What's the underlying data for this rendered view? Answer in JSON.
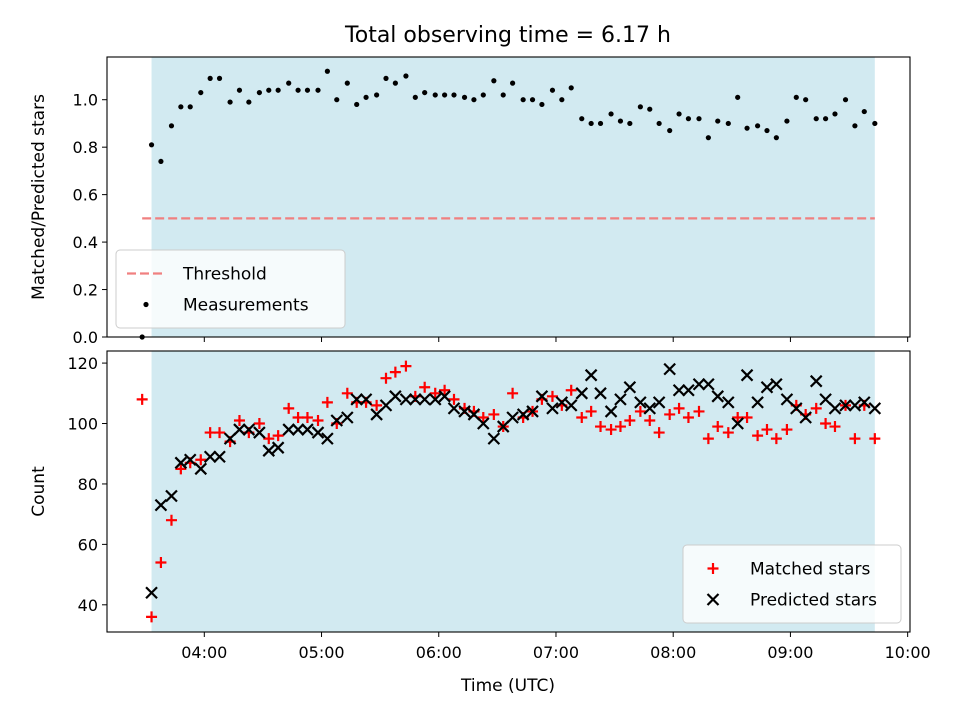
{
  "figure": {
    "title": "Total observing time = 6.17 h",
    "xlabel": "Time (UTC)",
    "span_color": "#add8e6",
    "span_hours": [
      3.55,
      9.72
    ],
    "x_ticks": [
      {
        "h": 4,
        "label": "04:00"
      },
      {
        "h": 5,
        "label": "05:00"
      },
      {
        "h": 6,
        "label": "06:00"
      },
      {
        "h": 7,
        "label": "07:00"
      },
      {
        "h": 8,
        "label": "08:00"
      },
      {
        "h": 9,
        "label": "09:00"
      },
      {
        "h": 10,
        "label": "10:00"
      }
    ],
    "xlim": [
      3.17,
      10.02
    ]
  },
  "chart_data": [
    {
      "type": "scatter",
      "ylabel": "Matched/Predicted stars",
      "ylim": [
        0,
        1.18
      ],
      "y_ticks": [
        {
          "v": 0.0,
          "label": "0.0"
        },
        {
          "v": 0.2,
          "label": "0.2"
        },
        {
          "v": 0.4,
          "label": "0.4"
        },
        {
          "v": 0.6,
          "label": "0.6"
        },
        {
          "v": 0.8,
          "label": "0.8"
        },
        {
          "v": 1.0,
          "label": "1.0"
        }
      ],
      "legend": {
        "placement": "lower-left",
        "entries": [
          {
            "label": "Threshold",
            "marker": "dashed-line",
            "color": "#f08080"
          },
          {
            "label": "Measurements",
            "marker": "dot",
            "color": "#000000"
          }
        ]
      },
      "threshold": {
        "value": 0.5,
        "x_range": [
          3.47,
          9.72
        ],
        "color": "#f08080"
      },
      "series": [
        {
          "name": "Measurements",
          "color": "#000000",
          "x": [
            3.47,
            3.55,
            3.63,
            3.72,
            3.8,
            3.88,
            3.97,
            4.05,
            4.13,
            4.22,
            4.3,
            4.38,
            4.47,
            4.55,
            4.63,
            4.72,
            4.8,
            4.88,
            4.97,
            5.05,
            5.13,
            5.22,
            5.3,
            5.38,
            5.47,
            5.55,
            5.63,
            5.72,
            5.8,
            5.88,
            5.97,
            6.05,
            6.13,
            6.22,
            6.3,
            6.38,
            6.47,
            6.55,
            6.63,
            6.72,
            6.8,
            6.88,
            6.97,
            7.05,
            7.13,
            7.22,
            7.3,
            7.38,
            7.47,
            7.55,
            7.63,
            7.72,
            7.8,
            7.88,
            7.97,
            8.05,
            8.13,
            8.22,
            8.3,
            8.38,
            8.47,
            8.55,
            8.63,
            8.72,
            8.8,
            8.88,
            8.97,
            9.05,
            9.13,
            9.22,
            9.3,
            9.38,
            9.47,
            9.55,
            9.63,
            9.72
          ],
          "y": [
            0.0,
            0.81,
            0.74,
            0.89,
            0.97,
            0.97,
            1.03,
            1.09,
            1.09,
            0.99,
            1.04,
            0.99,
            1.03,
            1.04,
            1.04,
            1.07,
            1.04,
            1.04,
            1.04,
            1.12,
            1.0,
            1.07,
            0.98,
            1.01,
            1.02,
            1.09,
            1.07,
            1.1,
            1.01,
            1.03,
            1.02,
            1.02,
            1.02,
            1.01,
            1.0,
            1.02,
            1.08,
            1.02,
            1.07,
            1.0,
            1.0,
            0.98,
            1.04,
            1.0,
            1.05,
            0.92,
            0.9,
            0.9,
            0.94,
            0.91,
            0.9,
            0.97,
            0.96,
            0.9,
            0.87,
            0.94,
            0.92,
            0.92,
            0.84,
            0.91,
            0.9,
            1.01,
            0.88,
            0.89,
            0.87,
            0.84,
            0.91,
            1.01,
            1.0,
            0.92,
            0.92,
            0.94,
            1.0,
            0.89,
            0.95,
            0.9
          ]
        }
      ]
    },
    {
      "type": "scatter",
      "ylabel": "Count",
      "ylim": [
        31,
        124
      ],
      "y_ticks": [
        {
          "v": 40,
          "label": "40"
        },
        {
          "v": 60,
          "label": "60"
        },
        {
          "v": 80,
          "label": "80"
        },
        {
          "v": 100,
          "label": "100"
        },
        {
          "v": 120,
          "label": "120"
        }
      ],
      "legend": {
        "placement": "lower-right",
        "entries": [
          {
            "label": "Matched stars",
            "marker": "plus",
            "color": "#ff0000"
          },
          {
            "label": "Predicted stars",
            "marker": "x",
            "color": "#000000"
          }
        ]
      },
      "series": [
        {
          "name": "Matched stars",
          "marker": "plus",
          "color": "#ff0000",
          "x": [
            3.47,
            3.55,
            3.63,
            3.72,
            3.8,
            3.88,
            3.97,
            4.05,
            4.13,
            4.22,
            4.3,
            4.38,
            4.47,
            4.55,
            4.63,
            4.72,
            4.8,
            4.88,
            4.97,
            5.05,
            5.13,
            5.22,
            5.3,
            5.38,
            5.47,
            5.55,
            5.63,
            5.72,
            5.8,
            5.88,
            5.97,
            6.05,
            6.13,
            6.22,
            6.3,
            6.38,
            6.47,
            6.55,
            6.63,
            6.72,
            6.8,
            6.88,
            6.97,
            7.05,
            7.13,
            7.22,
            7.3,
            7.38,
            7.47,
            7.55,
            7.63,
            7.72,
            7.8,
            7.88,
            7.97,
            8.05,
            8.13,
            8.22,
            8.3,
            8.38,
            8.47,
            8.55,
            8.63,
            8.72,
            8.8,
            8.88,
            8.97,
            9.05,
            9.13,
            9.22,
            9.3,
            9.38,
            9.47,
            9.55,
            9.63,
            9.72
          ],
          "y": [
            108,
            36,
            54,
            68,
            85,
            87,
            88,
            97,
            97,
            94,
            101,
            97,
            100,
            95,
            96,
            105,
            102,
            102,
            101,
            107,
            100,
            110,
            107,
            107,
            106,
            115,
            117,
            119,
            109,
            112,
            110,
            111,
            108,
            105,
            104,
            102,
            103,
            99,
            110,
            102,
            104,
            108,
            109,
            106,
            111,
            102,
            104,
            99,
            98,
            99,
            101,
            104,
            101,
            97,
            103,
            105,
            102,
            104,
            95,
            99,
            97,
            102,
            102,
            96,
            98,
            95,
            98,
            106,
            103,
            105,
            100,
            99,
            106,
            95,
            106,
            95
          ]
        },
        {
          "name": "Predicted stars",
          "marker": "x",
          "color": "#000000",
          "x": [
            3.55,
            3.63,
            3.72,
            3.8,
            3.88,
            3.97,
            4.05,
            4.13,
            4.22,
            4.3,
            4.38,
            4.47,
            4.55,
            4.63,
            4.72,
            4.8,
            4.88,
            4.97,
            5.05,
            5.13,
            5.22,
            5.3,
            5.38,
            5.47,
            5.55,
            5.63,
            5.72,
            5.8,
            5.88,
            5.97,
            6.05,
            6.13,
            6.22,
            6.3,
            6.38,
            6.47,
            6.55,
            6.63,
            6.72,
            6.8,
            6.88,
            6.97,
            7.05,
            7.13,
            7.22,
            7.3,
            7.38,
            7.47,
            7.55,
            7.63,
            7.72,
            7.8,
            7.88,
            7.97,
            8.05,
            8.13,
            8.22,
            8.3,
            8.38,
            8.47,
            8.55,
            8.63,
            8.72,
            8.8,
            8.88,
            8.97,
            9.05,
            9.13,
            9.22,
            9.3,
            9.38,
            9.47,
            9.55,
            9.63,
            9.72
          ],
          "y": [
            44,
            73,
            76,
            87,
            88,
            85,
            89,
            89,
            95,
            98,
            98,
            97,
            91,
            92,
            98,
            98,
            98,
            97,
            95,
            101,
            102,
            108,
            108,
            103,
            106,
            109,
            108,
            108,
            108,
            108,
            109,
            105,
            104,
            103,
            100,
            95,
            99,
            102,
            103,
            104,
            109,
            105,
            107,
            106,
            110,
            116,
            110,
            104,
            108,
            112,
            107,
            105,
            107,
            118,
            111,
            111,
            113,
            113,
            109,
            107,
            100,
            116,
            107,
            112,
            113,
            108,
            105,
            102,
            114,
            108,
            105,
            106,
            106,
            107,
            105
          ]
        }
      ]
    }
  ]
}
